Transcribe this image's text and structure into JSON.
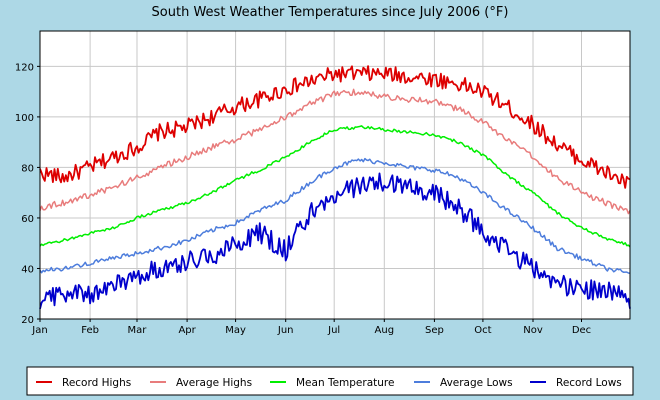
{
  "chart_data": {
    "type": "line",
    "title": "South West Weather Temperatures since July 2006 (°F)",
    "xlabel": "",
    "ylabel": "",
    "ylim": [
      20,
      134
    ],
    "yticks": [
      20,
      40,
      60,
      80,
      100,
      120
    ],
    "xlim": [
      1,
      366
    ],
    "month_ticks": [
      {
        "label": "Jan",
        "day": 1
      },
      {
        "label": "Feb",
        "day": 32
      },
      {
        "label": "Mar",
        "day": 61
      },
      {
        "label": "Apr",
        "day": 92
      },
      {
        "label": "May",
        "day": 122
      },
      {
        "label": "Jun",
        "day": 153
      },
      {
        "label": "Jul",
        "day": 183
      },
      {
        "label": "Aug",
        "day": 214
      },
      {
        "label": "Sep",
        "day": 245
      },
      {
        "label": "Oct",
        "day": 275
      },
      {
        "label": "Nov",
        "day": 306
      },
      {
        "label": "Dec",
        "day": 336
      }
    ],
    "grid": true,
    "legend_position": "bottom",
    "series": [
      {
        "name": "Record Highs",
        "color": "#dd0000",
        "x": [
          1,
          15,
          32,
          46,
          61,
          75,
          92,
          107,
          122,
          137,
          153,
          168,
          183,
          198,
          214,
          229,
          245,
          260,
          275,
          290,
          306,
          321,
          336,
          351,
          366
        ],
        "values": [
          78,
          76,
          80,
          84,
          88,
          94,
          96,
          100,
          104,
          107,
          111,
          114,
          117,
          117,
          117,
          116,
          115,
          113,
          110,
          104,
          97,
          89,
          83,
          78,
          73
        ]
      },
      {
        "name": "Average Highs",
        "color": "#e87c7c",
        "x": [
          1,
          15,
          32,
          46,
          61,
          75,
          92,
          107,
          122,
          137,
          153,
          168,
          183,
          198,
          214,
          229,
          245,
          260,
          275,
          290,
          306,
          321,
          336,
          351,
          366
        ],
        "values": [
          64,
          66,
          69,
          72,
          76,
          80,
          84,
          88,
          91,
          95,
          100,
          105,
          109,
          110,
          108,
          107,
          106,
          103,
          98,
          91,
          84,
          76,
          70,
          66,
          62
        ]
      },
      {
        "name": "Mean Temperature",
        "color": "#00ee00",
        "x": [
          1,
          15,
          32,
          46,
          61,
          75,
          92,
          107,
          122,
          137,
          153,
          168,
          183,
          198,
          214,
          229,
          245,
          260,
          275,
          290,
          306,
          321,
          336,
          351,
          366
        ],
        "values": [
          49,
          51,
          54,
          56,
          60,
          63,
          66,
          70,
          75,
          79,
          84,
          90,
          95,
          96,
          95,
          94,
          93,
          90,
          85,
          77,
          70,
          62,
          56,
          52,
          49
        ]
      },
      {
        "name": "Average Lows",
        "color": "#4d7ddc",
        "x": [
          1,
          15,
          32,
          46,
          61,
          75,
          92,
          107,
          122,
          137,
          153,
          168,
          183,
          198,
          214,
          229,
          245,
          260,
          275,
          290,
          306,
          321,
          336,
          351,
          366
        ],
        "values": [
          39,
          40,
          42,
          44,
          46,
          48,
          51,
          55,
          58,
          63,
          67,
          74,
          80,
          83,
          82,
          80,
          79,
          76,
          70,
          63,
          56,
          48,
          44,
          40,
          38
        ]
      },
      {
        "name": "Record Lows",
        "color": "#0000cc",
        "x": [
          1,
          15,
          32,
          46,
          61,
          75,
          92,
          107,
          122,
          137,
          153,
          168,
          183,
          198,
          214,
          229,
          245,
          260,
          275,
          290,
          306,
          321,
          336,
          351,
          366
        ],
        "values": [
          28,
          30,
          30,
          33,
          37,
          40,
          43,
          45,
          50,
          54,
          47,
          62,
          68,
          73,
          74,
          72,
          70,
          64,
          55,
          47,
          40,
          34,
          32,
          31,
          28
        ]
      }
    ]
  }
}
